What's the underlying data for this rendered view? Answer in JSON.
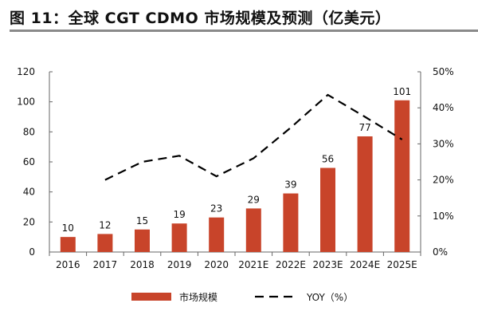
{
  "title": "图 11：全球 CGT CDMO 市场规模及预测（亿美元）",
  "colors": {
    "bar": "#c8442a",
    "line": "#000000",
    "axis": "#666666"
  },
  "chart_data": {
    "type": "bar+line",
    "categories": [
      "2016",
      "2017",
      "2018",
      "2019",
      "2020",
      "2021E",
      "2022E",
      "2023E",
      "2024E",
      "2025E"
    ],
    "series": [
      {
        "name": "市场规模",
        "type": "bar",
        "axis": "left",
        "values": [
          10,
          12,
          15,
          19,
          23,
          29,
          39,
          56,
          77,
          101
        ]
      },
      {
        "name": "YOY（%）",
        "type": "line",
        "style": "dashed",
        "axis": "right",
        "values": [
          null,
          20,
          25,
          26.7,
          21,
          26,
          34.5,
          43.6,
          37.5,
          31.2
        ]
      }
    ],
    "left_axis": {
      "ylim": [
        0,
        120
      ],
      "ticks": [
        "0",
        "20",
        "40",
        "60",
        "80",
        "100",
        "120"
      ]
    },
    "right_axis": {
      "ylim": [
        0,
        50
      ],
      "ticks": [
        "0%",
        "10%",
        "20%",
        "30%",
        "40%",
        "50%"
      ]
    },
    "grid": false,
    "legend": "bottom"
  }
}
